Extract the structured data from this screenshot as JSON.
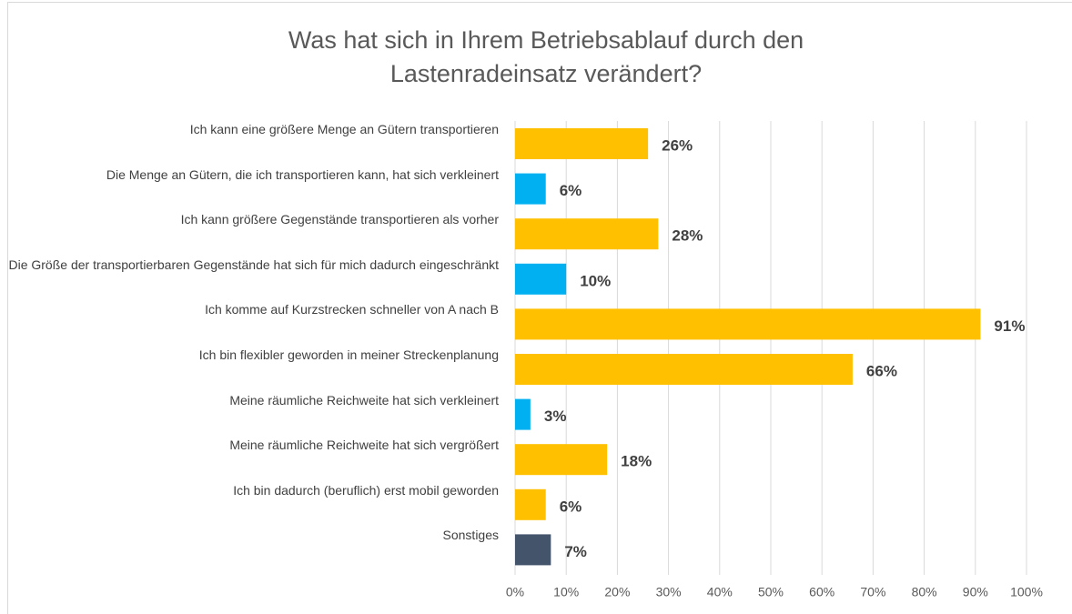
{
  "chart_data": {
    "type": "bar",
    "orientation": "horizontal",
    "title": [
      "Was hat sich in Ihrem Betriebsablauf durch den",
      "Lastenradeinsatz verändert?"
    ],
    "categories": [
      "Ich kann eine größere Menge an Gütern transportieren",
      "Die Menge an Gütern, die ich transportieren kann, hat sich verkleinert",
      "Ich kann größere Gegenstände transportieren als vorher",
      "Die Größe der transportierbaren Gegenstände hat sich für mich dadurch eingeschränkt",
      "Ich komme auf Kurzstrecken schneller von A nach B",
      "Ich bin flexibler geworden in meiner Streckenplanung",
      "Meine räumliche Reichweite hat sich verkleinert",
      "Meine räumliche Reichweite hat sich vergrößert",
      "Ich bin dadurch (beruflich) erst mobil geworden",
      "Sonstiges"
    ],
    "values": [
      26,
      6,
      28,
      10,
      91,
      66,
      3,
      18,
      6,
      7
    ],
    "value_labels": [
      "26%",
      "6%",
      "28%",
      "10%",
      "91%",
      "66%",
      "3%",
      "18%",
      "6%",
      "7%"
    ],
    "colors": [
      "#FFC000",
      "#00B0F0",
      "#FFC000",
      "#00B0F0",
      "#FFC000",
      "#FFC000",
      "#00B0F0",
      "#FFC000",
      "#FFC000",
      "#44546A"
    ],
    "xlim": [
      0,
      100
    ],
    "xticks": [
      {
        "value": 0,
        "label": "0%"
      },
      {
        "value": 10,
        "label": "10%"
      },
      {
        "value": 20,
        "label": "20%"
      },
      {
        "value": 30,
        "label": "30%"
      },
      {
        "value": 40,
        "label": "40%"
      },
      {
        "value": 50,
        "label": "50%"
      },
      {
        "value": 60,
        "label": "60%"
      },
      {
        "value": 70,
        "label": "70%"
      },
      {
        "value": 80,
        "label": "80%"
      },
      {
        "value": 90,
        "label": "90%"
      },
      {
        "value": 100,
        "label": "100%"
      }
    ],
    "grid": true
  }
}
